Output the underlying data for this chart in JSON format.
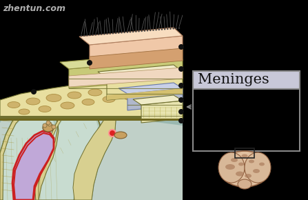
{
  "bg_color": "#000000",
  "watermark": "zhentun.com",
  "watermark_color": "#cccccc",
  "title_text": "Meninges",
  "title_fontsize": 15,
  "skin_pink": "#f0c8a8",
  "skin_brown": "#c8956c",
  "scalp_green": "#c8ca78",
  "dura_cream": "#e8dfa0",
  "dura_tan": "#d4c070",
  "arachnoid_blue": "#b0b8cc",
  "subarachnoid_cream": "#e8e4b0",
  "brain_bg": "#b8c8b8",
  "brain_light": "#c8d8c8",
  "sulcus_purple": "#c0a8d8",
  "sulcus_red_outline": "#cc2020",
  "vessel_red": "#dd2222",
  "teal_bg": "#9ab8b0",
  "dark_outline": "#707030",
  "mesh_yellow": "#d8d090",
  "dot_color": "#111111",
  "gran_color": "#c8a060",
  "legend_title_bg": "#c8c8d8",
  "legend_body_bg": "#000000",
  "legend_border": "#888888"
}
